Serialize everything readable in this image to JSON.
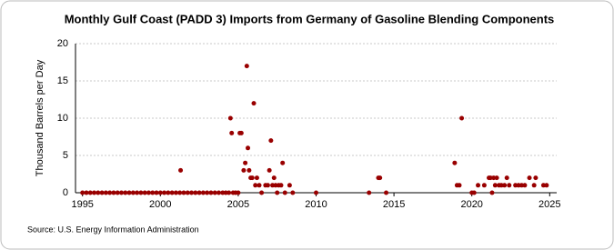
{
  "chart_data": {
    "type": "scatter",
    "title": "Monthly Gulf Coast (PADD 3) Imports from Germany of Gasoline Blending Components",
    "y_label": "Thousand Barrels per Day",
    "source": "Source: U.S. Energy Information Administration",
    "color": "#990000",
    "grid": true,
    "xlim": [
      1994.55,
      2025.45
    ],
    "xticks": [
      1995,
      2000,
      2005,
      2010,
      2015,
      2020,
      2025
    ],
    "ylim": [
      0,
      20
    ],
    "yticks": [
      0,
      5,
      10,
      15,
      20
    ],
    "x": [
      1995,
      1995.25,
      1995.5,
      1995.75,
      1996,
      1996.25,
      1996.5,
      1996.75,
      1997,
      1997.25,
      1997.5,
      1997.75,
      1998,
      1998.25,
      1998.5,
      1998.75,
      1999,
      1999.25,
      1999.5,
      1999.75,
      2000,
      2000.25,
      2000.5,
      2000.75,
      2001,
      2001.25,
      2001.5,
      2001.75,
      2002,
      2002.25,
      2002.5,
      2002.75,
      2003,
      2003.25,
      2003.5,
      2003.75,
      2001.3,
      2004.0,
      2004.2,
      2004.4,
      2004.5,
      2004.58,
      2004.67,
      2004.83,
      2005.0,
      2005.1,
      2005.2,
      2005.35,
      2005.45,
      2005.55,
      2005.62,
      2005.7,
      2005.8,
      2005.9,
      2006.0,
      2006.1,
      2006.2,
      2006.35,
      2006.5,
      2006.75,
      2006.9,
      2007.0,
      2007.1,
      2007.2,
      2007.3,
      2007.4,
      2007.5,
      2007.6,
      2007.75,
      2007.85,
      2008.0,
      2008.3,
      2008.5,
      2010.0,
      2013.4,
      2014.0,
      2014.1,
      2014.5,
      2018.9,
      2019.05,
      2019.2,
      2019.35,
      2020.0,
      2020.15,
      2020.4,
      2020.8,
      2021.1,
      2021.2,
      2021.3,
      2021.4,
      2021.5,
      2021.6,
      2021.75,
      2021.9,
      2022.1,
      2022.25,
      2022.4,
      2022.8,
      2023.0,
      2023.2,
      2023.4,
      2023.7,
      2024.0,
      2024.1,
      2024.6,
      2024.8
    ],
    "values": [
      0,
      0,
      0,
      0,
      0,
      0,
      0,
      0,
      0,
      0,
      0,
      0,
      0,
      0,
      0,
      0,
      0,
      0,
      0,
      0,
      0,
      0,
      0,
      0,
      0,
      0,
      0,
      0,
      0,
      0,
      0,
      0,
      0,
      0,
      0,
      0,
      3,
      0,
      0,
      0,
      10,
      8,
      0,
      0,
      0,
      8,
      8,
      3,
      4,
      17,
      6,
      3,
      2,
      2,
      12,
      1,
      2,
      1,
      0,
      1,
      1,
      3,
      7,
      1,
      2,
      1,
      0,
      1,
      1,
      4,
      0,
      1,
      0,
      0,
      0,
      2,
      2,
      0,
      4,
      1,
      1,
      10,
      0,
      0,
      1,
      1,
      2,
      2,
      0,
      2,
      1,
      2,
      1,
      1,
      1,
      2,
      1,
      1,
      1,
      1,
      1,
      2,
      1,
      2,
      1,
      1
    ]
  }
}
